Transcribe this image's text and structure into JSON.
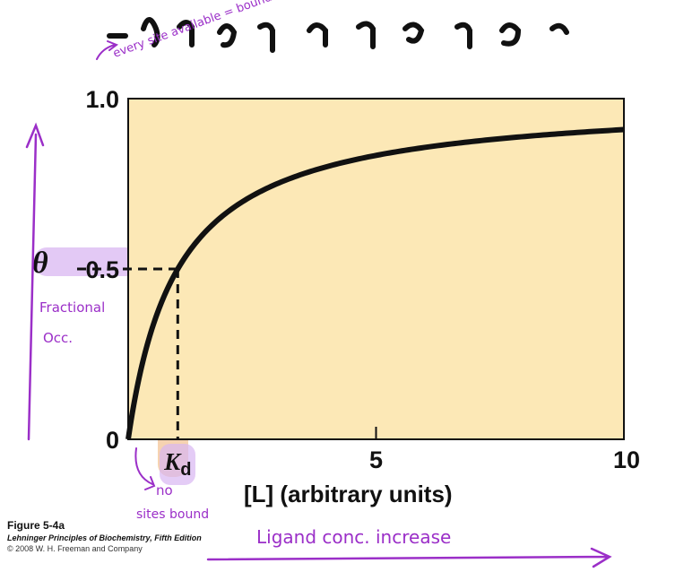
{
  "chart_data": {
    "type": "line",
    "title": "",
    "ylabel": "θ",
    "xlabel": "[L] (arbitrary units)",
    "xlim": [
      0,
      10
    ],
    "ylim": [
      0,
      1.0
    ],
    "x_ticks": [
      "5",
      "10"
    ],
    "y_ticks": [
      "0",
      "0.5",
      "1.0"
    ],
    "kd_label": "K",
    "kd_subscript": "d",
    "kd_value": 1.0,
    "curve": {
      "equation": "theta = L / (L + Kd)",
      "kd": 1.0
    },
    "marked_point": {
      "x": 1.0,
      "y": 0.5
    },
    "background_color": "#fce8b6",
    "curve_color": "#111111"
  },
  "annotations": {
    "top_note": "every site available = bound",
    "y_note_line1": "Fractional",
    "y_note_line2": "Occ.",
    "bottom_note_line1": "no",
    "bottom_note_line2": "sites bound",
    "x_note": "Ligand conc. increase",
    "ink_color": "#9b2fc8",
    "highlight_purple": "#d9b7f2",
    "highlight_orange": "#f2c090"
  },
  "caption": {
    "figure": "Figure 5-4a",
    "book": "Lehninger Principles of Biochemistry, Fifth Edition",
    "copyright": "© 2008 W. H. Freeman and Company"
  },
  "cropped_header_fragment": "...y  ...g  ...g  ...  ..."
}
